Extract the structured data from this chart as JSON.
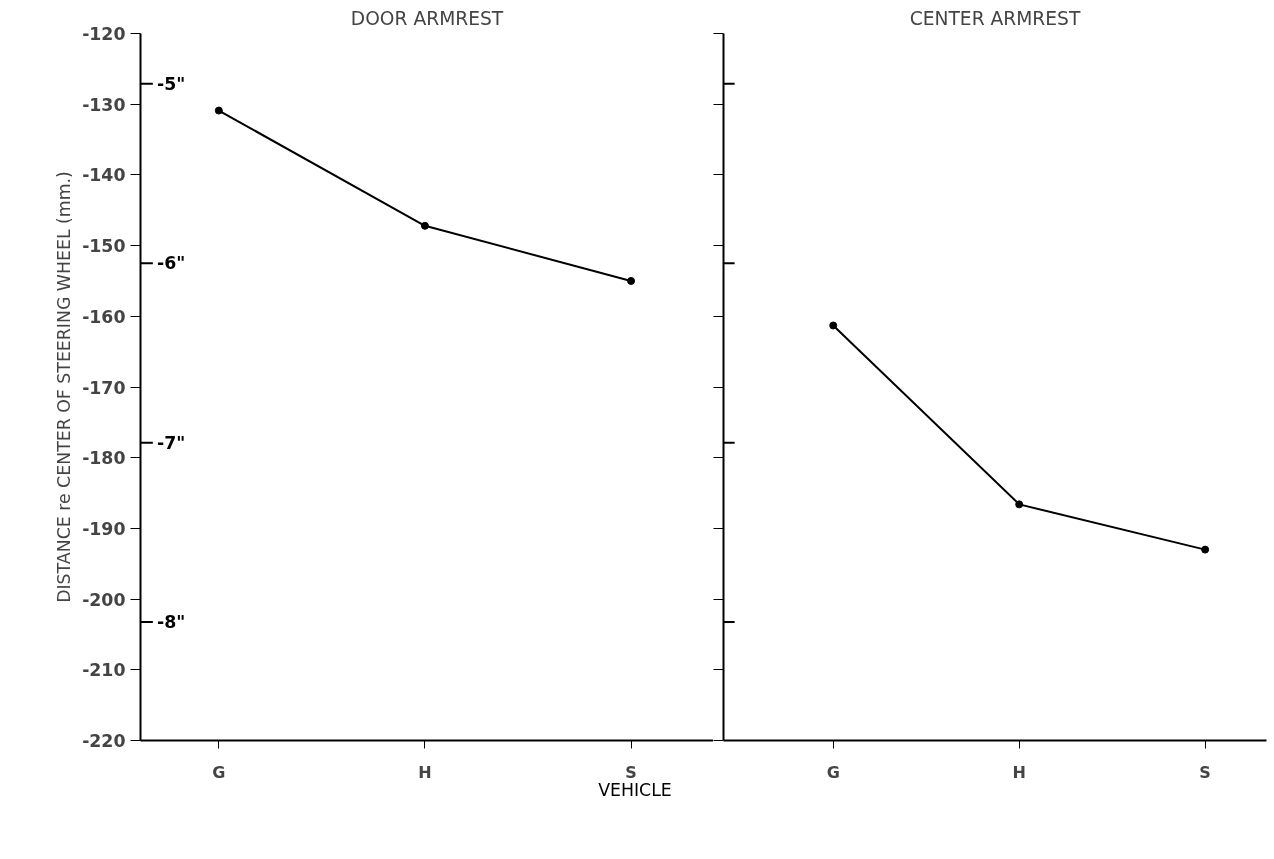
{
  "chart_data": [
    {
      "type": "line",
      "title": "DOOR ARMREST",
      "xlabel": "VEHICLE",
      "ylabel": "DISTANCE re CENTER OF STEERING WHEEL (mm.)",
      "categories": [
        "G",
        "H",
        "S"
      ],
      "series": [
        {
          "color": "#000000",
          "values": [
            -130.9,
            -147.2,
            -155.0
          ]
        }
      ],
      "ylim": [
        -220,
        -120
      ],
      "yticks": [
        -220,
        -210,
        -200,
        -190,
        -180,
        -170,
        -160,
        -150,
        -140,
        -130,
        -120
      ],
      "y2lim": [
        -8.66,
        -4.72
      ],
      "y2ticks": [
        {
          "value": -5,
          "label": "-5\""
        },
        {
          "value": -6,
          "label": "-6\""
        },
        {
          "value": -7,
          "label": "-7\""
        },
        {
          "value": -8,
          "label": "-8\""
        }
      ],
      "marker": "circle",
      "line_style": "solid",
      "grid": false
    },
    {
      "type": "line",
      "title": "CENTER ARMREST",
      "categories": [
        "G",
        "H",
        "S"
      ],
      "series": [
        {
          "color": "#000000",
          "values": [
            -161.3,
            -186.6,
            -193.0
          ]
        }
      ],
      "ylim": [
        -220,
        -120
      ],
      "yticks": [
        -220,
        -210,
        -200,
        -190,
        -180,
        -170,
        -160,
        -150,
        -140,
        -130,
        -120
      ],
      "y2lim": [
        -8.66,
        -4.72
      ],
      "y2ticks": [
        {
          "value": -5,
          "label": null
        },
        {
          "value": -6,
          "label": null
        },
        {
          "value": -7,
          "label": null
        },
        {
          "value": -8,
          "label": null
        }
      ],
      "marker": "circle",
      "line_style": "solid",
      "grid": false,
      "tick_labels": "x"
    }
  ]
}
